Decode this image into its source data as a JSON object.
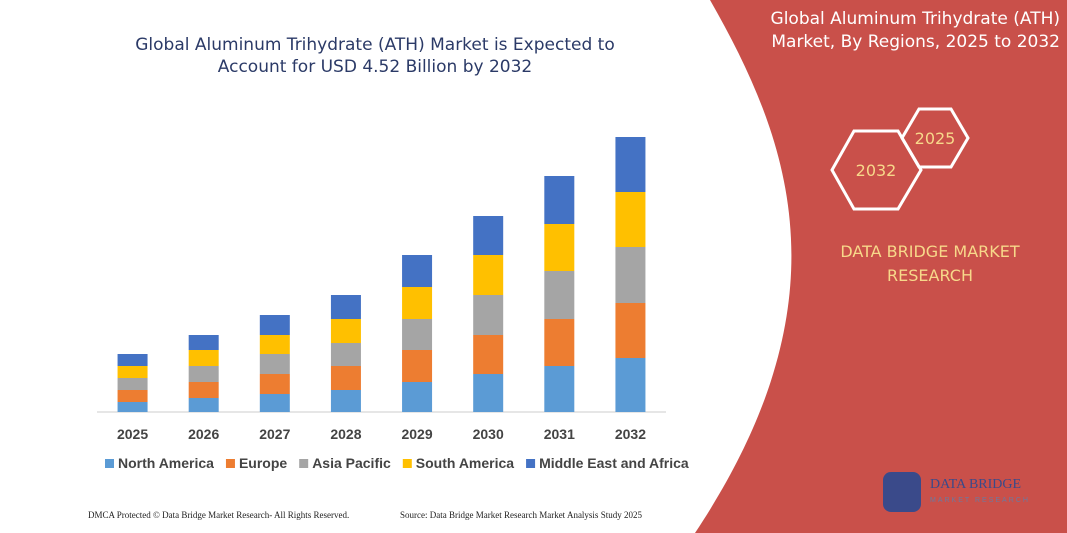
{
  "chart_data": {
    "type": "stacked_bar",
    "title": "Global Aluminum Trihydrate (ATH) Market is Expected to Account for USD 4.52 Billion by 2032",
    "categories": [
      "2025",
      "2026",
      "2027",
      "2028",
      "2029",
      "2030",
      "2031",
      "2032"
    ],
    "series": [
      {
        "name": "North America",
        "color": "#5b9bd5",
        "values": [
          10,
          14,
          18,
          22,
          30,
          38,
          46,
          54
        ]
      },
      {
        "name": "Europe",
        "color": "#ed7d31",
        "values": [
          12,
          16,
          20,
          24,
          32,
          39,
          47,
          55
        ]
      },
      {
        "name": "Asia Pacific",
        "color": "#a5a5a5",
        "values": [
          12,
          16,
          20,
          23,
          31,
          40,
          48,
          56
        ]
      },
      {
        "name": "South America",
        "color": "#ffc000",
        "values": [
          12,
          16,
          19,
          24,
          32,
          40,
          47,
          55
        ]
      },
      {
        "name": "Middle East and Africa",
        "color": "#4472c4",
        "values": [
          12,
          15,
          20,
          24,
          32,
          39,
          48,
          55
        ]
      }
    ]
  },
  "panel": {
    "title": "Global Aluminum Trihydrate (ATH) Market, By Regions, 2025 to 2032",
    "hex_small": "2025",
    "hex_large": "2032",
    "brand": "DATA BRIDGE MARKET RESEARCH"
  },
  "logo": {
    "name": "DATA BRIDGE",
    "tagline": "MARKET RESEARCH"
  },
  "footer": {
    "left": "DMCA Protected © Data Bridge Market Research- All Rights Reserved.",
    "right": "Source: Data Bridge Market Research Market Analysis Study 2025"
  }
}
